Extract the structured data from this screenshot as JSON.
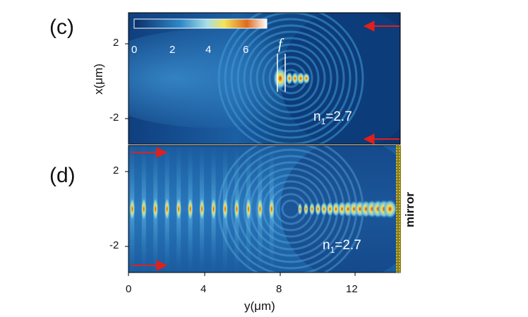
{
  "panels": [
    {
      "label": "(c)",
      "ylabel": "x(μm)",
      "y_ticks": [
        "2",
        "-2"
      ],
      "annotation": "n",
      "annotation_sub": "1",
      "annotation_value": "=2.7",
      "focal_label": "f",
      "colorbar_ticks": [
        "0",
        "2",
        "4",
        "6"
      ]
    },
    {
      "label": "(d)",
      "ylabel": "x(μm)",
      "y_ticks": [
        "2",
        "-2"
      ],
      "annotation": "n",
      "annotation_sub": "1",
      "annotation_value": "=2.7",
      "mirror_label": "mirror"
    }
  ],
  "x_axis": {
    "label": "y(μm)",
    "ticks": [
      "0",
      "4",
      "8",
      "12"
    ]
  },
  "colors": {
    "field_dark": "#0b2f6b",
    "field_mid": "#2f88c8",
    "field_high": "#f3e35a",
    "field_peak": "#e06a1c",
    "arrow": "#e0201c",
    "mirror": "#a79a2a"
  },
  "chart_data": [
    {
      "type": "heatmap",
      "title": "",
      "xlabel": "",
      "ylabel": "x(μm)",
      "colorbar": {
        "ticks": [
          0,
          2,
          4,
          6
        ],
        "range": [
          0,
          7
        ]
      },
      "x_range": [
        0,
        14.5
      ],
      "y_range": [
        -2.7,
        2.7
      ],
      "y_ticks": [
        2,
        -2
      ],
      "annotations": [
        "n1=2.7",
        "f"
      ],
      "features": {
        "focus_y": 8.2,
        "sphere_center_y": 12.4,
        "sphere_radius": 4.2
      }
    },
    {
      "type": "heatmap",
      "title": "",
      "xlabel": "y(μm)",
      "ylabel": "x(μm)",
      "x_ticks": [
        0,
        4,
        8,
        12
      ],
      "x_range": [
        0,
        14.5
      ],
      "y_range": [
        -2.7,
        2.7
      ],
      "y_ticks": [
        2,
        -2
      ],
      "annotations": [
        "n1=2.7",
        "mirror"
      ],
      "features": {
        "standing_wave_period": 0.62,
        "sphere_center_y": 12.4,
        "sphere_radius": 4.2
      }
    }
  ]
}
